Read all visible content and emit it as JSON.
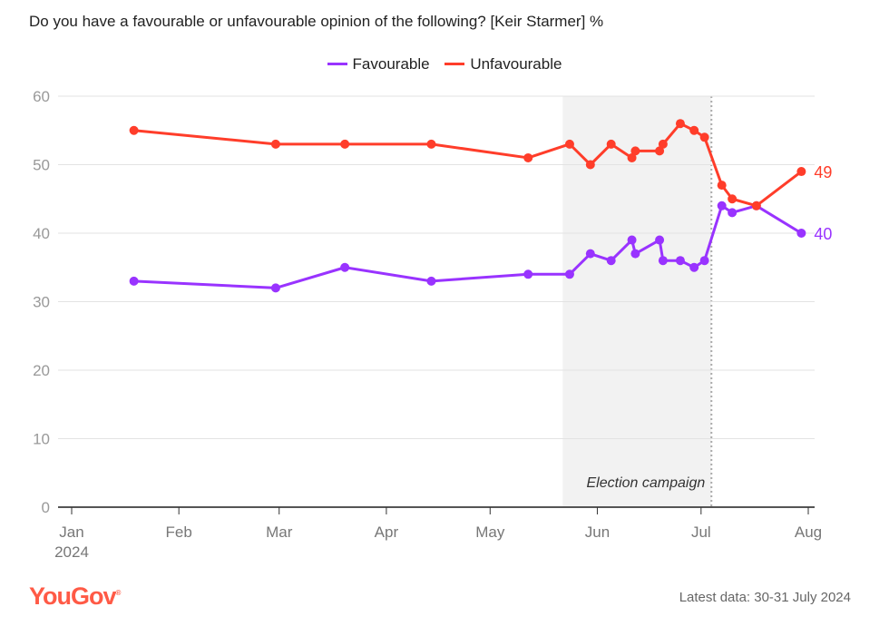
{
  "chart_data": {
    "type": "line",
    "title": "Do you have a favourable or unfavourable opinion of the following? [Keir Starmer] %",
    "ylim": [
      0,
      60
    ],
    "yticks": [
      0,
      10,
      20,
      30,
      40,
      50,
      60
    ],
    "xlim": [
      "2024-01-01",
      "2024-08-01"
    ],
    "xticks": [
      {
        "date": "2024-01-01",
        "label": "Jan",
        "sub": "2024"
      },
      {
        "date": "2024-02-01",
        "label": "Feb"
      },
      {
        "date": "2024-03-01",
        "label": "Mar"
      },
      {
        "date": "2024-04-01",
        "label": "Apr"
      },
      {
        "date": "2024-05-01",
        "label": "May"
      },
      {
        "date": "2024-06-01",
        "label": "Jun"
      },
      {
        "date": "2024-07-01",
        "label": "Jul"
      },
      {
        "date": "2024-08-01",
        "label": "Aug"
      }
    ],
    "grid": true,
    "legend_position": "top-center",
    "x": [
      "2024-01-19",
      "2024-02-29",
      "2024-03-20",
      "2024-04-14",
      "2024-05-12",
      "2024-05-24",
      "2024-05-30",
      "2024-06-05",
      "2024-06-11",
      "2024-06-12",
      "2024-06-19",
      "2024-06-20",
      "2024-06-25",
      "2024-06-29",
      "2024-07-02",
      "2024-07-07",
      "2024-07-10",
      "2024-07-17",
      "2024-07-30"
    ],
    "series": [
      {
        "name": "Favourable",
        "color": "#9933ff",
        "values": [
          33,
          32,
          35,
          33,
          34,
          34,
          37,
          36,
          39,
          37,
          39,
          36,
          36,
          35,
          36,
          44,
          43,
          44,
          40
        ],
        "end_label": "40"
      },
      {
        "name": "Unfavourable",
        "color": "#ff3d2a",
        "values": [
          55,
          53,
          53,
          53,
          51,
          53,
          50,
          53,
          51,
          52,
          52,
          53,
          56,
          55,
          54,
          47,
          45,
          44,
          49
        ],
        "end_label": "49"
      }
    ],
    "annotations": [
      {
        "type": "shaded-region",
        "start": "2024-05-22",
        "end": "2024-07-04",
        "label": "Election campaign"
      }
    ]
  },
  "footer": {
    "brand": "YouGov",
    "brand_color": "#ff5a46",
    "latest": "Latest data: 30-31 July 2024"
  }
}
